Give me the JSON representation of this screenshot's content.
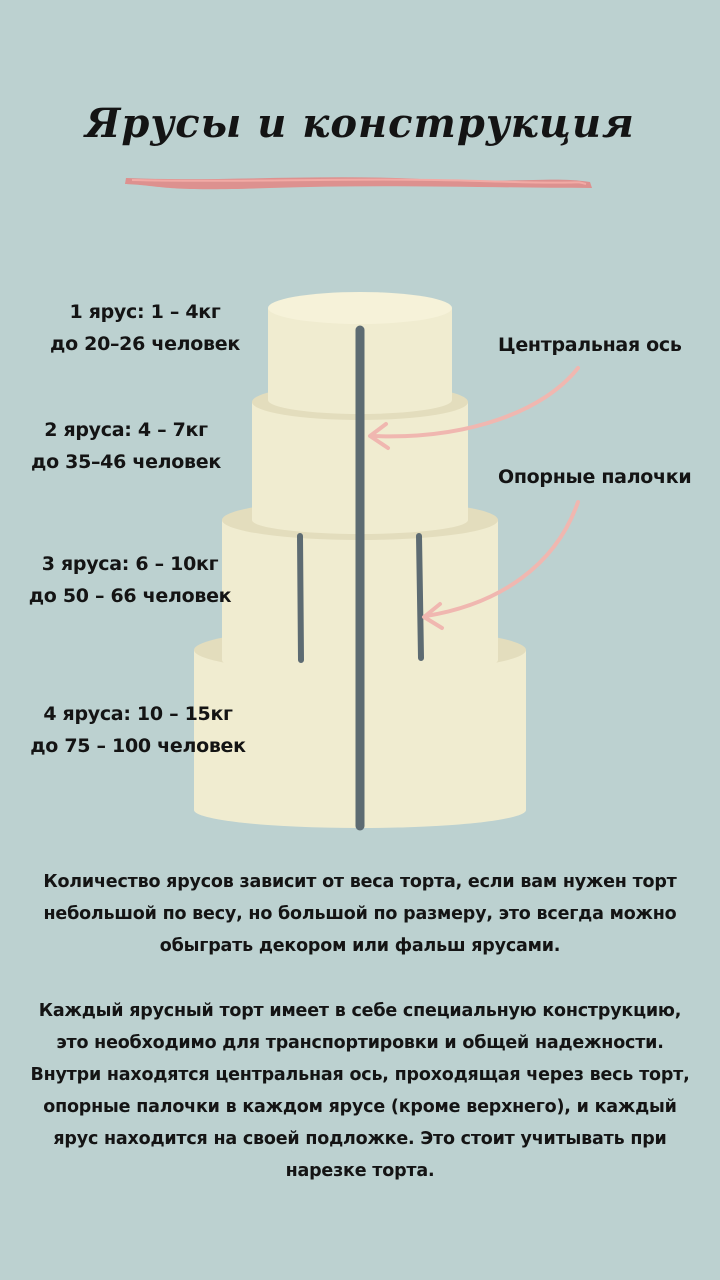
{
  "title": "Ярусы и конструкция",
  "tiers": [
    {
      "weight": "1 ярус: 1 – 4кг",
      "people": "до 20–26 человек"
    },
    {
      "weight": "2 яруса: 4 – 7кг",
      "people": "до 35–46 человек"
    },
    {
      "weight": "3 яруса: 6 – 10кг",
      "people": "до 50 – 66 человек"
    },
    {
      "weight": "4 яруса: 10 – 15кг",
      "people": "до 75 – 100 человек"
    }
  ],
  "callouts": {
    "central_axis": "Центральная ось",
    "support_sticks": "Опорные палочки"
  },
  "paragraphs": [
    "Количество ярусов зависит от веса торта, если вам нужен торт небольшой по весу, но большой по размеру, это всегда можно обыграть декором или фальш ярусами.",
    "Каждый ярусный торт имеет в себе специальную конструкцию, это необходимо для транспортировки и общей надежности. Внутри находятся центральная ось, проходящая через весь торт, опорные палочки в каждом ярусе (кроме верхнего), и каждый ярус находится на своей подложке. Это стоит учитывать при нарезке торта."
  ],
  "colors": {
    "background": "#bcd1d0",
    "cake_body": "#f0ecd0",
    "cake_top": "#f6f2d9",
    "cake_edge": "#dcd6b4",
    "axis": "#5d6b72",
    "arrow": "#f0b7b0",
    "underline": "#e08a87"
  }
}
